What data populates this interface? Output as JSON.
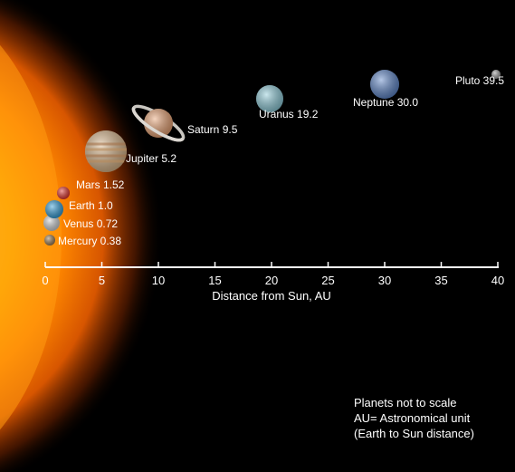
{
  "chart_data": {
    "type": "scatter",
    "xlabel": "Distance from Sun, AU",
    "xlim": [
      0,
      40
    ],
    "x_ticks": [
      "0",
      "5",
      "10",
      "15",
      "20",
      "25",
      "30",
      "35",
      "40"
    ],
    "points": [
      {
        "name": "Mercury",
        "value_label": "0.38",
        "x": 0.38
      },
      {
        "name": "Venus",
        "value_label": "0.72",
        "x": 0.72
      },
      {
        "name": "Earth",
        "value_label": "1.0",
        "x": 1.0
      },
      {
        "name": "Mars",
        "value_label": "1.52",
        "x": 1.52
      },
      {
        "name": "Jupiter",
        "value_label": "5.2",
        "x": 5.2
      },
      {
        "name": "Saturn",
        "value_label": "9.5",
        "x": 9.5
      },
      {
        "name": "Uranus",
        "value_label": "19.2",
        "x": 19.2
      },
      {
        "name": "Neptune",
        "value_label": "30.0",
        "x": 30.0
      },
      {
        "name": "Pluto",
        "value_label": "39.5",
        "x": 39.5
      }
    ]
  },
  "notes": {
    "line1": "Planets not to scale",
    "line2": "AU= Astronomical unit",
    "line3": "(Earth to Sun distance)"
  },
  "colors": {
    "sun_core": "#ffd21a",
    "sun_mid": "#ff8a00",
    "sun_edge": "#d04a00",
    "mercury": "#9a7b50",
    "venus": "#cfd2d4",
    "earth": "#2f9bd6",
    "mars": "#e0302a",
    "jupiter": "#d8b488",
    "saturn": "#e8a070",
    "uranus": "#8ccbd9",
    "neptune": "#5b84c8",
    "pluto": "#9a9a9a"
  }
}
